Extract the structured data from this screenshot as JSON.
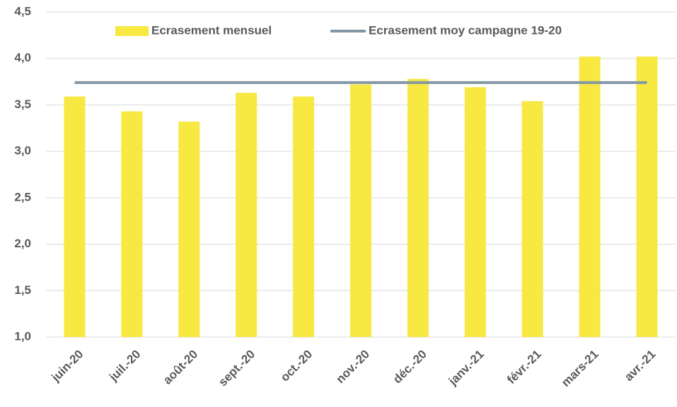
{
  "chart_data": {
    "type": "bar",
    "categories": [
      "juin-20",
      "juil.-20",
      "août-20",
      "sept.-20",
      "oct.-20",
      "nov.-20",
      "déc.-20",
      "janv.-21",
      "févr.-21",
      "mars-21",
      "avr.-21"
    ],
    "series": [
      {
        "name": "Ecrasement mensuel",
        "type": "bar",
        "color": "#f7e842",
        "values": [
          3.59,
          3.43,
          3.32,
          3.63,
          3.59,
          3.72,
          3.78,
          3.69,
          3.54,
          4.02,
          4.02
        ]
      },
      {
        "name": "Ecrasement moy campagne 19-20",
        "type": "line",
        "color": "#8497a4",
        "values": [
          3.74,
          3.74,
          3.74,
          3.74,
          3.74,
          3.74,
          3.74,
          3.74,
          3.74,
          3.74,
          3.74
        ]
      }
    ],
    "ylim": [
      1.0,
      4.5
    ],
    "yticks": [
      {
        "value": 1.0,
        "label": "1,0"
      },
      {
        "value": 1.5,
        "label": "1,5"
      },
      {
        "value": 2.0,
        "label": "2,0"
      },
      {
        "value": 2.5,
        "label": "2,5"
      },
      {
        "value": 3.0,
        "label": "3,0"
      },
      {
        "value": 3.5,
        "label": "3,5"
      },
      {
        "value": 4.0,
        "label": "4,0"
      },
      {
        "value": 4.5,
        "label": "4,5"
      }
    ],
    "grid": true,
    "legend": "top"
  }
}
